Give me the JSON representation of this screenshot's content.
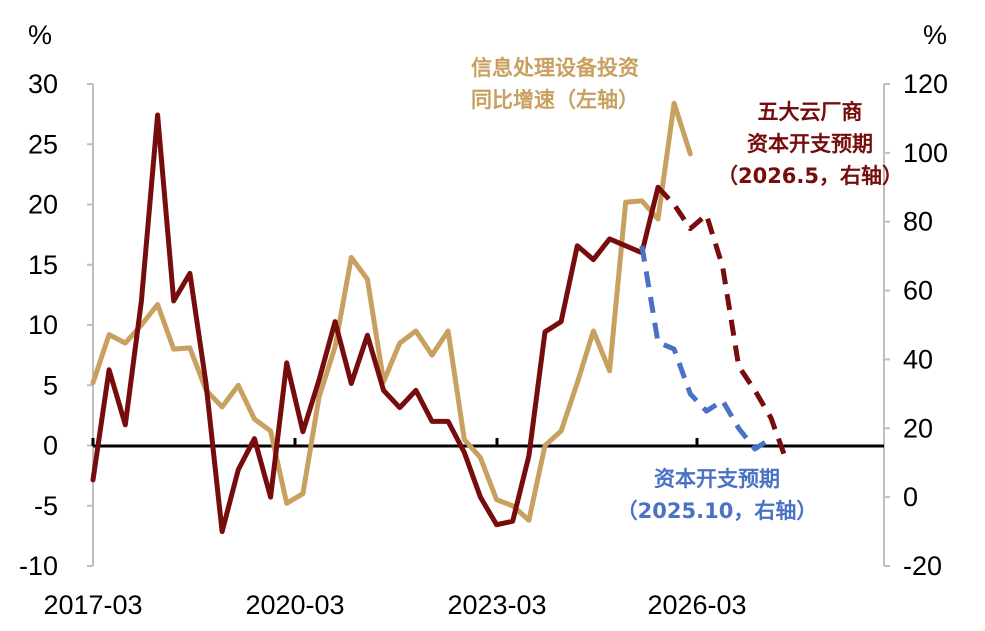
{
  "chart_data": {
    "type": "line",
    "left_axis_unit": "%",
    "right_axis_unit": "%",
    "left_ylim": [
      -10,
      30
    ],
    "left_yticks": [
      -10,
      -5,
      0,
      5,
      10,
      15,
      20,
      25,
      30
    ],
    "right_ylim": [
      -20,
      120
    ],
    "right_yticks": [
      -20,
      0,
      20,
      40,
      60,
      80,
      100,
      120
    ],
    "x_range": [
      "2017-03",
      "2029-06"
    ],
    "x_ticks": [
      "2017-03",
      "2020-03",
      "2023-03",
      "2026-03"
    ],
    "grid": false,
    "annotations": {
      "equipment": [
        "信息处理设备投资",
        "同比增速（左轴）"
      ],
      "cloud": [
        "五大云厂商",
        "资本开支预期",
        "（2026.5，右轴）"
      ],
      "capex": [
        "资本开支预期",
        "（2025.10，右轴）"
      ]
    },
    "series": [
      {
        "key": "equipment",
        "axis": "left",
        "color": "#c8a060",
        "style": "solid",
        "points": [
          [
            "2017-03",
            5.2
          ],
          [
            "2017-06",
            9.2
          ],
          [
            "2017-09",
            8.5
          ],
          [
            "2017-12",
            10.0
          ],
          [
            "2018-03",
            11.7
          ],
          [
            "2018-06",
            8.0
          ],
          [
            "2018-09",
            8.1
          ],
          [
            "2018-12",
            4.6
          ],
          [
            "2019-03",
            3.2
          ],
          [
            "2019-06",
            5.0
          ],
          [
            "2019-09",
            2.2
          ],
          [
            "2019-12",
            1.2
          ],
          [
            "2020-03",
            -4.8
          ],
          [
            "2020-06",
            -4.0
          ],
          [
            "2020-09",
            4.0
          ],
          [
            "2020-12",
            8.2
          ],
          [
            "2021-03",
            15.6
          ],
          [
            "2021-06",
            13.8
          ],
          [
            "2021-09",
            5.3
          ],
          [
            "2021-12",
            8.5
          ],
          [
            "2022-03",
            9.5
          ],
          [
            "2022-06",
            7.5
          ],
          [
            "2022-09",
            9.5
          ],
          [
            "2022-12",
            0.5
          ],
          [
            "2023-03",
            -1.0
          ],
          [
            "2023-06",
            -4.5
          ],
          [
            "2023-09",
            -5.0
          ],
          [
            "2023-12",
            -6.2
          ],
          [
            "2024-03",
            0.0
          ],
          [
            "2024-06",
            1.2
          ],
          [
            "2024-09",
            5.2
          ],
          [
            "2024-12",
            9.5
          ],
          [
            "2025-03",
            6.2
          ],
          [
            "2025-06",
            20.2
          ],
          [
            "2025-09",
            20.3
          ],
          [
            "2025-12",
            18.8
          ],
          [
            "2026-03",
            28.4
          ],
          [
            "2026-06",
            24.2
          ]
        ]
      },
      {
        "key": "cloud_capex_actual",
        "axis": "right",
        "color": "#760c0c",
        "style": "solid",
        "points": [
          [
            "2017-03",
            5
          ],
          [
            "2017-06",
            37
          ],
          [
            "2017-09",
            21
          ],
          [
            "2017-12",
            57
          ],
          [
            "2018-03",
            111
          ],
          [
            "2018-06",
            57
          ],
          [
            "2018-09",
            65
          ],
          [
            "2018-12",
            33
          ],
          [
            "2019-03",
            -10
          ],
          [
            "2019-06",
            8
          ],
          [
            "2019-09",
            17
          ],
          [
            "2019-12",
            0
          ],
          [
            "2020-03",
            39
          ],
          [
            "2020-06",
            19
          ],
          [
            "2020-09",
            34
          ],
          [
            "2020-12",
            51
          ],
          [
            "2021-03",
            33
          ],
          [
            "2021-06",
            47
          ],
          [
            "2021-09",
            31
          ],
          [
            "2021-12",
            26
          ],
          [
            "2022-03",
            31
          ],
          [
            "2022-06",
            22
          ],
          [
            "2022-09",
            22
          ],
          [
            "2022-12",
            13
          ],
          [
            "2023-03",
            0
          ],
          [
            "2023-06",
            -8
          ],
          [
            "2023-09",
            -7
          ],
          [
            "2023-12",
            12
          ],
          [
            "2024-03",
            48
          ],
          [
            "2024-06",
            51
          ],
          [
            "2024-09",
            73
          ],
          [
            "2024-12",
            69
          ],
          [
            "2025-03",
            75
          ],
          [
            "2025-06",
            73
          ],
          [
            "2025-09",
            71
          ],
          [
            "2025-12",
            90
          ]
        ]
      },
      {
        "key": "cloud",
        "axis": "right",
        "color": "#760c0c",
        "style": "dashed",
        "points": [
          [
            "2025-12",
            90
          ],
          [
            "2026-03",
            85
          ],
          [
            "2026-06",
            78
          ],
          [
            "2026-09",
            82
          ],
          [
            "2026-12",
            67
          ],
          [
            "2027-03",
            38
          ],
          [
            "2027-06",
            31
          ],
          [
            "2027-09",
            23
          ],
          [
            "2027-12",
            10
          ]
        ]
      },
      {
        "key": "capex",
        "axis": "right",
        "color": "#4a72c4",
        "style": "dashed",
        "points": [
          [
            "2025-09",
            73
          ],
          [
            "2025-12",
            45
          ],
          [
            "2026-03",
            43
          ],
          [
            "2026-06",
            30
          ],
          [
            "2026-09",
            25
          ],
          [
            "2026-12",
            28
          ],
          [
            "2027-03",
            20
          ],
          [
            "2027-06",
            14
          ],
          [
            "2027-09",
            17
          ]
        ]
      }
    ]
  }
}
